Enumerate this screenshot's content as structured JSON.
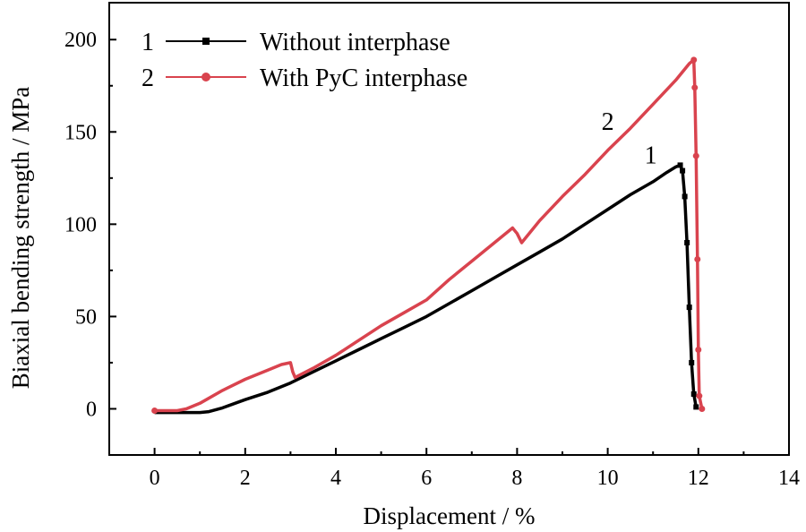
{
  "chart_data": {
    "type": "line",
    "title": "",
    "xlabel": "Displacement / %",
    "ylabel": "Biaxial bending strength / MPa",
    "xlim": [
      -1,
      14
    ],
    "ylim": [
      -25,
      220
    ],
    "xticks": [
      0,
      2,
      4,
      6,
      8,
      10,
      12,
      14
    ],
    "yticks": [
      0,
      50,
      100,
      150,
      200
    ],
    "grid": false,
    "legend_position": "top-left",
    "series": [
      {
        "name": "Without interphase",
        "legend_index": "1",
        "curve_label": "1",
        "color": "#000000",
        "marker": "square",
        "points": [
          [
            0,
            -2
          ],
          [
            0.5,
            -2
          ],
          [
            1.0,
            -2
          ],
          [
            1.2,
            -1.5
          ],
          [
            1.5,
            0.5
          ],
          [
            2.0,
            5
          ],
          [
            2.5,
            9
          ],
          [
            3.0,
            14
          ],
          [
            3.5,
            20
          ],
          [
            4.0,
            26
          ],
          [
            4.5,
            32
          ],
          [
            5.0,
            38
          ],
          [
            5.5,
            44
          ],
          [
            6.0,
            50
          ],
          [
            6.5,
            57
          ],
          [
            7.0,
            64
          ],
          [
            7.5,
            71
          ],
          [
            8.0,
            78
          ],
          [
            8.5,
            85
          ],
          [
            9.0,
            92
          ],
          [
            9.5,
            100
          ],
          [
            10.0,
            108
          ],
          [
            10.5,
            116
          ],
          [
            11.0,
            123
          ],
          [
            11.3,
            128
          ],
          [
            11.5,
            131
          ],
          [
            11.6,
            132
          ],
          [
            11.65,
            129
          ],
          [
            11.7,
            115
          ],
          [
            11.75,
            90
          ],
          [
            11.8,
            55
          ],
          [
            11.85,
            25
          ],
          [
            11.9,
            8
          ],
          [
            11.95,
            1
          ]
        ],
        "marker_points": [
          [
            11.6,
            132
          ],
          [
            11.65,
            129
          ],
          [
            11.7,
            115
          ],
          [
            11.75,
            90
          ],
          [
            11.8,
            55
          ],
          [
            11.85,
            25
          ],
          [
            11.9,
            8
          ],
          [
            11.95,
            1
          ]
        ]
      },
      {
        "name": "With PyC interphase",
        "legend_index": "2",
        "curve_label": "2",
        "color": "#d9434e",
        "marker": "circle",
        "points": [
          [
            0,
            -1
          ],
          [
            0.5,
            -1
          ],
          [
            0.7,
            0
          ],
          [
            1.0,
            3
          ],
          [
            1.5,
            10
          ],
          [
            2.0,
            16
          ],
          [
            2.5,
            21
          ],
          [
            2.8,
            24
          ],
          [
            3.0,
            25
          ],
          [
            3.05,
            20
          ],
          [
            3.1,
            17
          ],
          [
            3.5,
            22
          ],
          [
            4.0,
            29
          ],
          [
            4.5,
            37
          ],
          [
            5.0,
            45
          ],
          [
            5.5,
            52
          ],
          [
            6.0,
            59
          ],
          [
            6.5,
            70
          ],
          [
            7.0,
            80
          ],
          [
            7.5,
            90
          ],
          [
            7.9,
            98
          ],
          [
            8.0,
            95
          ],
          [
            8.1,
            90
          ],
          [
            8.5,
            102
          ],
          [
            9.0,
            115
          ],
          [
            9.5,
            127
          ],
          [
            10.0,
            140
          ],
          [
            10.5,
            152
          ],
          [
            11.0,
            165
          ],
          [
            11.5,
            178
          ],
          [
            11.8,
            187
          ],
          [
            11.9,
            189
          ],
          [
            11.92,
            174
          ],
          [
            11.95,
            137
          ],
          [
            11.98,
            81
          ],
          [
            12.0,
            32
          ],
          [
            12.02,
            7
          ],
          [
            12.08,
            0
          ]
        ],
        "marker_points": [
          [
            0,
            -1
          ],
          [
            11.9,
            189
          ],
          [
            11.92,
            174
          ],
          [
            11.95,
            137
          ],
          [
            11.98,
            81
          ],
          [
            12.0,
            32
          ],
          [
            12.02,
            7
          ],
          [
            12.08,
            0
          ]
        ]
      }
    ]
  }
}
